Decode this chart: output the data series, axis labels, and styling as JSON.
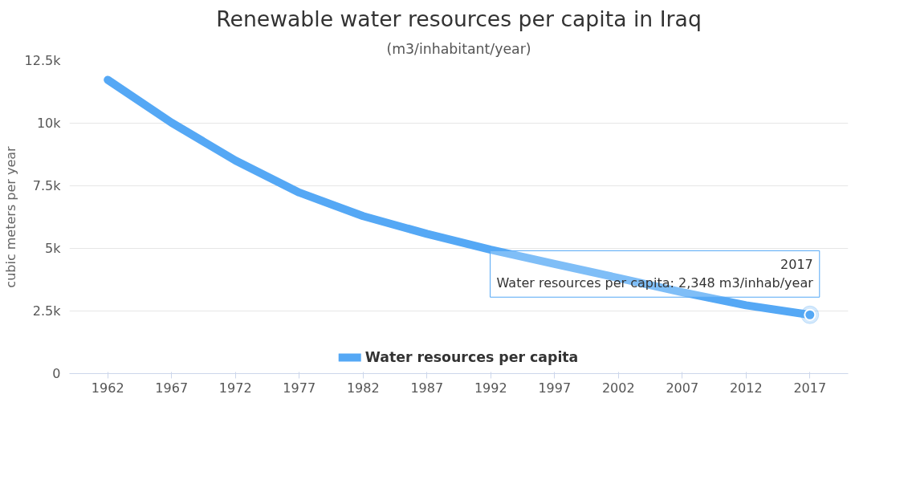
{
  "chart_data": {
    "type": "line",
    "title": "Renewable water resources per capita in Iraq",
    "subtitle": "(m3/inhabitant/year)",
    "ylabel": "cubic meters per year",
    "categories": [
      "1962",
      "1967",
      "1972",
      "1977",
      "1982",
      "1987",
      "1992",
      "1997",
      "2002",
      "2007",
      "2012",
      "2017"
    ],
    "series": [
      {
        "name": "Water resources per capita",
        "color": "#55a8f5",
        "values": [
          11730,
          10020,
          8510,
          7230,
          6290,
          5580,
          4950,
          4380,
          3820,
          3250,
          2730,
          2348
        ]
      }
    ],
    "ylim": [
      0,
      12500
    ],
    "yticks": [
      {
        "value": 0,
        "label": "0"
      },
      {
        "value": 2500,
        "label": "2.5k"
      },
      {
        "value": 5000,
        "label": "5k"
      },
      {
        "value": 7500,
        "label": "7.5k"
      },
      {
        "value": 10000,
        "label": "10k"
      },
      {
        "value": 12500,
        "label": "12.5k"
      }
    ],
    "grid": "y",
    "legend": "bottom",
    "marker": "none",
    "line_style": "solid",
    "annotations": [
      {
        "text": "2017\nWater resources per capita: 2,348 m3/inhab/year",
        "x": "2017",
        "y": 2348
      }
    ]
  }
}
